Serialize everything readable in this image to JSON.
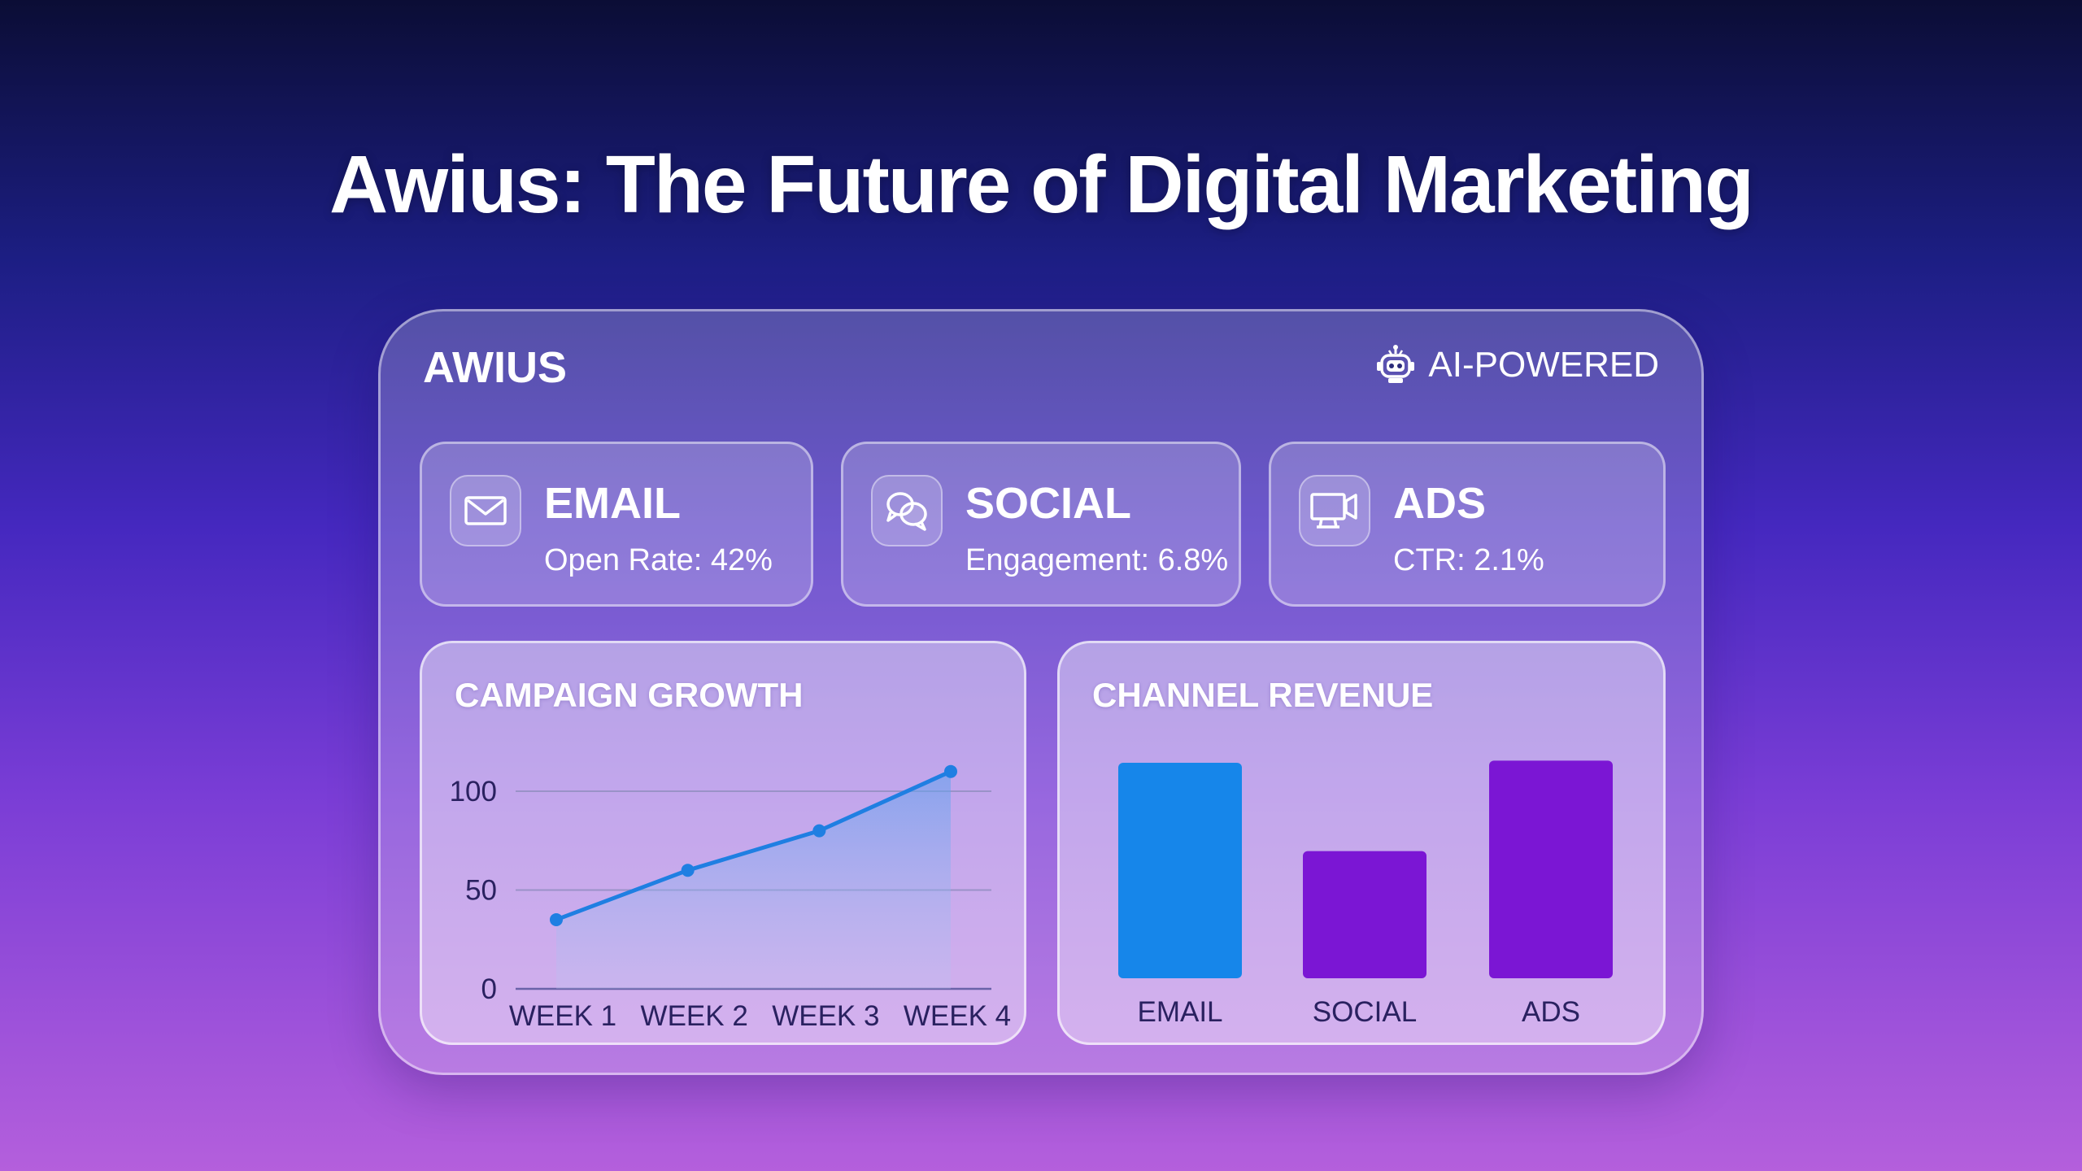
{
  "page": {
    "title": "Awius: The Future of Digital Marketing"
  },
  "dashboard": {
    "brand": "AWIUS",
    "badge": {
      "label": "AI-POWERED",
      "icon": "robot-icon"
    },
    "metrics": [
      {
        "label": "EMAIL",
        "value": "Open Rate: 42%",
        "icon": "envelope-icon"
      },
      {
        "label": "SOCIAL",
        "value": "Engagement: 6.8%",
        "icon": "chat-bubbles-icon"
      },
      {
        "label": "ADS",
        "value": "CTR: 2.1%",
        "icon": "monitor-camera-icon"
      }
    ]
  },
  "colors": {
    "accent_blue": "#1686ea",
    "accent_purple": "#7b16d4",
    "line_blue": "#1f7fe2"
  },
  "chart_data": [
    {
      "type": "area",
      "title": "CAMPAIGN GROWTH",
      "categories": [
        "WEEK 1",
        "WEEK 2",
        "WEEK 3",
        "WEEK 4"
      ],
      "values": [
        35,
        60,
        80,
        110
      ],
      "yticks": [
        "0",
        "50",
        "100"
      ],
      "ylim": [
        0,
        120
      ],
      "grid": true
    },
    {
      "type": "bar",
      "title": "CHANNEL REVENUE",
      "categories": [
        "EMAIL",
        "SOCIAL",
        "ADS"
      ],
      "values": [
        100,
        59,
        101
      ],
      "ylim": [
        0,
        100
      ],
      "grid": false
    }
  ]
}
